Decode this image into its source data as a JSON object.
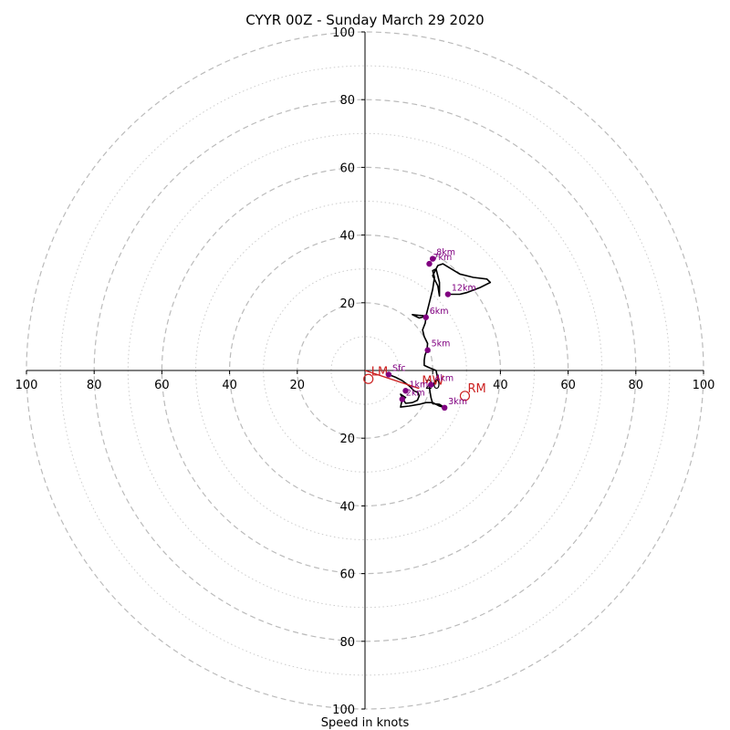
{
  "chart_data": {
    "type": "hodograph",
    "title": "CYYR 00Z - Sunday March 29 2020",
    "xlabel": "Speed in knots",
    "ylabel": "",
    "xlim": [
      -100,
      100
    ],
    "ylim": [
      -100,
      100
    ],
    "rings": {
      "major": [
        20,
        40,
        60,
        80,
        100
      ],
      "minor": [
        10,
        30,
        50,
        70,
        90
      ]
    },
    "x_ticks": [
      {
        "value": -100,
        "label": "100"
      },
      {
        "value": -80,
        "label": "80"
      },
      {
        "value": -60,
        "label": "60"
      },
      {
        "value": -40,
        "label": "40"
      },
      {
        "value": -20,
        "label": "20"
      },
      {
        "value": 20,
        "label": "20"
      },
      {
        "value": 40,
        "label": "40"
      },
      {
        "value": 60,
        "label": "60"
      },
      {
        "value": 80,
        "label": "80"
      },
      {
        "value": 100,
        "label": "100"
      }
    ],
    "y_ticks": [
      {
        "value": 100,
        "label": "100"
      },
      {
        "value": 80,
        "label": "80"
      },
      {
        "value": 60,
        "label": "60"
      },
      {
        "value": 40,
        "label": "40"
      },
      {
        "value": 20,
        "label": "20"
      },
      {
        "value": -20,
        "label": "20"
      },
      {
        "value": -40,
        "label": "40"
      },
      {
        "value": -60,
        "label": "60"
      },
      {
        "value": -80,
        "label": "80"
      },
      {
        "value": -100,
        "label": "100"
      }
    ],
    "wind_profile": {
      "color": "#000000",
      "points": [
        [
          7,
          -1.2
        ],
        [
          9,
          -2
        ],
        [
          11,
          -3
        ],
        [
          13,
          -4.5
        ],
        [
          14.5,
          -6
        ],
        [
          15.6,
          -6.5
        ],
        [
          16,
          -7.5
        ],
        [
          15.5,
          -8.8
        ],
        [
          14,
          -9.5
        ],
        [
          12,
          -9.7
        ],
        [
          11,
          -8
        ],
        [
          10.5,
          -7
        ],
        [
          12,
          -8
        ],
        [
          11,
          -8.5
        ],
        [
          10.5,
          -10.8
        ],
        [
          13,
          -10.5
        ],
        [
          16,
          -10
        ],
        [
          18,
          -9.5
        ],
        [
          20,
          -9.5
        ],
        [
          22,
          -10.5
        ],
        [
          23.5,
          -11
        ],
        [
          22,
          -10
        ],
        [
          20,
          -9.8
        ],
        [
          19.5,
          -8
        ],
        [
          19,
          -5
        ],
        [
          19.4,
          -4.2
        ],
        [
          20.5,
          -3.8
        ],
        [
          21.5,
          -2.5
        ],
        [
          21,
          0
        ],
        [
          19,
          0.8
        ],
        [
          17.5,
          1.5
        ],
        [
          17.5,
          3
        ],
        [
          17.7,
          4.5
        ],
        [
          18.3,
          6
        ],
        [
          18.5,
          8
        ],
        [
          17.5,
          10
        ],
        [
          17,
          12
        ],
        [
          17.8,
          14
        ],
        [
          18,
          15.7
        ],
        [
          17.2,
          16.2
        ],
        [
          15.8,
          16.3
        ],
        [
          14,
          16.5
        ],
        [
          16,
          15.5
        ],
        [
          18,
          16
        ],
        [
          19,
          20
        ],
        [
          20,
          24
        ],
        [
          20.5,
          27.5
        ],
        [
          20,
          29.5
        ],
        [
          21,
          30
        ],
        [
          22,
          26
        ],
        [
          22,
          22
        ],
        [
          21.5,
          25
        ],
        [
          20,
          28
        ],
        [
          21,
          30
        ],
        [
          21.5,
          31
        ],
        [
          23,
          31.5
        ],
        [
          28,
          28.5
        ],
        [
          32,
          27.5
        ],
        [
          36,
          27
        ],
        [
          37,
          26
        ],
        [
          34,
          24.5
        ],
        [
          30,
          23
        ],
        [
          28,
          22.5
        ],
        [
          24.5,
          22.5
        ]
      ]
    },
    "height_markers": {
      "color": "#800080",
      "points": [
        {
          "label": "Sfc",
          "u": 7,
          "v": -1.2
        },
        {
          "label": "1km",
          "u": 12,
          "v": -6
        },
        {
          "label": "2km",
          "u": 11,
          "v": -8.5
        },
        {
          "label": "3km",
          "u": 23.5,
          "v": -11
        },
        {
          "label": "4km",
          "u": 19.5,
          "v": -4.2
        },
        {
          "label": "5km",
          "u": 18.5,
          "v": 6
        },
        {
          "label": "6km",
          "u": 18,
          "v": 15.7
        },
        {
          "label": "7km",
          "u": 19,
          "v": 31.5
        },
        {
          "label": "8km",
          "u": 20,
          "v": 33
        },
        {
          "label": "12km",
          "u": 24.5,
          "v": 22.5
        }
      ]
    },
    "storm_motion": {
      "color": "#cc2222",
      "line": [
        [
          0,
          0
        ],
        [
          16,
          -5.3
        ]
      ],
      "markers": [
        {
          "label": "LM",
          "u": 1,
          "v": -2.5
        },
        {
          "label": "MW",
          "u": 16,
          "v": -5.3
        },
        {
          "label": "RM",
          "u": 29.5,
          "v": -7.5
        }
      ]
    }
  }
}
